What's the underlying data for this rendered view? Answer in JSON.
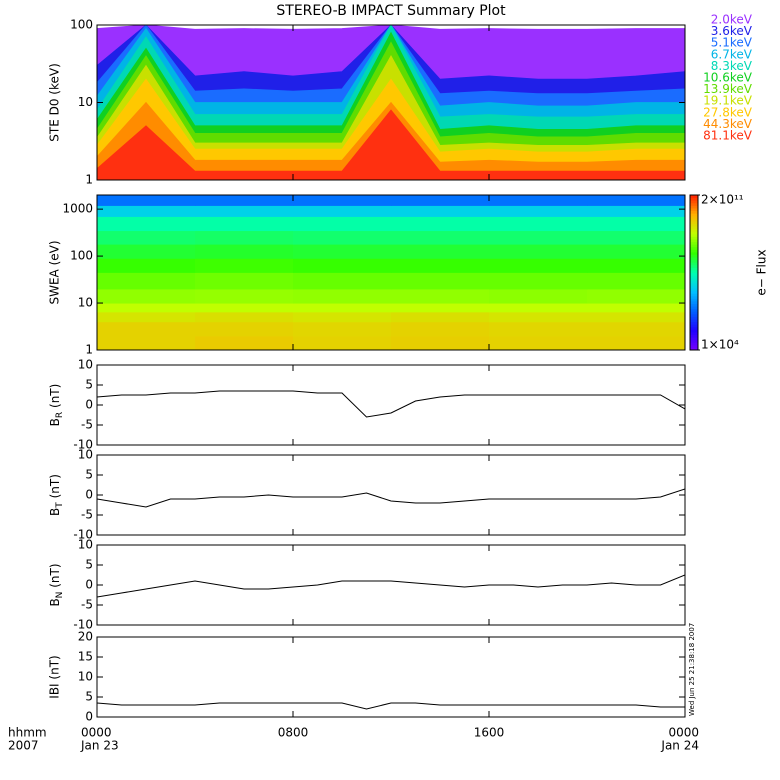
{
  "chart_data": [
    {
      "type": "area",
      "title": "STEREO-B IMPACT Summary Plot",
      "ylabel": "STE D0 (keV)",
      "ylog": true,
      "ylim": [
        1,
        100
      ],
      "yticks": [
        1,
        10,
        100
      ],
      "xlim": [
        0,
        24
      ],
      "x": [
        0,
        2,
        4,
        6,
        8,
        10,
        12,
        14,
        16,
        18,
        20,
        22,
        24
      ],
      "series": [
        {
          "name": "2.0keV",
          "color": "#9a30ff",
          "values": [
            90,
            100,
            88,
            90,
            88,
            90,
            100,
            88,
            90,
            88,
            88,
            90,
            90
          ]
        },
        {
          "name": "3.6keV",
          "color": "#2020e8",
          "values": [
            30,
            100,
            22,
            25,
            22,
            25,
            100,
            20,
            22,
            20,
            20,
            22,
            25
          ]
        },
        {
          "name": "5.1keV",
          "color": "#1a6cff",
          "values": [
            18,
            100,
            14,
            15,
            14,
            15,
            100,
            13,
            14,
            13,
            13,
            14,
            15
          ]
        },
        {
          "name": "6.7keV",
          "color": "#00b4e6",
          "values": [
            12,
            90,
            10,
            10,
            10,
            10,
            100,
            9,
            10,
            9,
            9,
            10,
            10
          ]
        },
        {
          "name": "8.3keV",
          "color": "#00d8b4",
          "values": [
            8,
            70,
            7,
            7,
            7,
            7,
            100,
            6.5,
            7,
            6.5,
            6.5,
            7,
            7
          ]
        },
        {
          "name": "10.6keV",
          "color": "#10d020",
          "values": [
            6,
            50,
            5,
            5,
            5,
            5,
            80,
            4.5,
            5,
            4.5,
            4.5,
            5,
            5
          ]
        },
        {
          "name": "13.9keV",
          "color": "#60dc00",
          "values": [
            4.5,
            40,
            4,
            4,
            4,
            4,
            60,
            3.6,
            4,
            3.6,
            3.6,
            4,
            4
          ]
        },
        {
          "name": "19.1keV",
          "color": "#c8e000",
          "values": [
            3.5,
            30,
            3,
            3,
            3,
            3,
            40,
            2.8,
            3,
            2.8,
            2.8,
            3,
            3
          ]
        },
        {
          "name": "27.8keV",
          "color": "#ffc800",
          "values": [
            2.8,
            20,
            2.5,
            2.5,
            2.5,
            2.5,
            20,
            2.3,
            2.5,
            2.3,
            2.3,
            2.5,
            2.5
          ]
        },
        {
          "name": "44.3keV",
          "color": "#ff8c00",
          "values": [
            2,
            10,
            1.8,
            1.8,
            1.8,
            1.8,
            10,
            1.7,
            1.8,
            1.7,
            1.7,
            1.8,
            1.8
          ]
        },
        {
          "name": "81.1keV",
          "color": "#ff3010",
          "values": [
            1.4,
            5,
            1.3,
            1.3,
            1.3,
            1.3,
            8,
            1.3,
            1.3,
            1.3,
            1.3,
            1.3,
            1.3
          ]
        }
      ]
    },
    {
      "type": "heatmap",
      "ylabel": "SWEA (eV)",
      "ylog": true,
      "ylim": [
        1,
        2000
      ],
      "yticks": [
        1,
        10,
        100,
        1000
      ],
      "xlim": [
        0,
        24
      ],
      "time_bins": [
        0,
        4,
        8,
        12,
        16,
        20,
        24
      ],
      "energy_bins": [
        1,
        2,
        4,
        6.5,
        10,
        20,
        45,
        90,
        180,
        350,
        700,
        1200,
        2000
      ],
      "flux": [
        [
          10000000000.0,
          12000000000.0,
          10000000000.0,
          11000000000.0,
          10000000000.0,
          10000000000.0
        ],
        [
          10000000000.0,
          10000000000.0,
          9000000000.0,
          10000000000.0,
          9000000000.0,
          9000000000.0
        ],
        [
          6000000000.0,
          7000000000.0,
          6000000000.0,
          7000000000.0,
          6000000000.0,
          6000000000.0
        ],
        [
          3000000000.0,
          3000000000.0,
          3000000000.0,
          3000000000.0,
          3000000000.0,
          3000000000.0
        ],
        [
          1500000000.0,
          1600000000.0,
          1500000000.0,
          1500000000.0,
          1400000000.0,
          1500000000.0
        ],
        [
          800000000.0,
          900000000.0,
          800000000.0,
          800000000.0,
          800000000.0,
          800000000.0
        ],
        [
          400000000.0,
          450000000.0,
          400000000.0,
          400000000.0,
          400000000.0,
          400000000.0
        ],
        [
          200000000.0,
          220000000.0,
          200000000.0,
          200000000.0,
          200000000.0,
          200000000.0
        ],
        [
          100000000.0,
          110000000.0,
          100000000.0,
          100000000.0,
          100000000.0,
          100000000.0
        ],
        [
          50000000.0,
          50000000.0,
          50000000.0,
          50000000.0,
          50000000.0,
          50000000.0
        ],
        [
          10000000.0,
          10000000.0,
          10000000.0,
          10000000.0,
          10000000.0,
          10000000.0
        ],
        [
          1000000.0,
          1000000.0,
          1000000.0,
          1000000.0,
          1000000.0,
          1000000.0
        ]
      ],
      "colorbar": {
        "label": "e− Flux",
        "lim": [
          10000,
          200000000000
        ],
        "ticks": [
          {
            "value": 10000,
            "label": "1×10⁴"
          },
          {
            "value": 200000000000,
            "label": "2×10¹¹"
          }
        ],
        "colormap": [
          "#7800ff",
          "#2000ff",
          "#0060ff",
          "#00c0ff",
          "#00ffb0",
          "#30ff00",
          "#c0ff00",
          "#ffb000",
          "#ff2000"
        ]
      }
    },
    {
      "type": "line",
      "ylabel": {
        "base": "B",
        "sub": "R",
        "unit": "(nT)"
      },
      "ylim": [
        -10,
        10
      ],
      "yticks": [
        -10,
        -5,
        0,
        5,
        10
      ],
      "xlim": [
        0,
        24
      ],
      "x": [
        0,
        1,
        2,
        3,
        4,
        5,
        6,
        7,
        8,
        9,
        10,
        11,
        12,
        13,
        14,
        15,
        16,
        17,
        18,
        19,
        20,
        21,
        22,
        23,
        24
      ],
      "values": [
        2,
        2.5,
        2.5,
        3,
        3,
        3.5,
        3.5,
        3.5,
        3.5,
        3,
        3,
        -3,
        -2,
        1,
        2,
        2.5,
        2.5,
        2.5,
        2.5,
        2.5,
        2.5,
        2.5,
        2.5,
        2.5,
        -1
      ]
    },
    {
      "type": "line",
      "ylabel": {
        "base": "B",
        "sub": "T",
        "unit": "(nT)"
      },
      "ylim": [
        -10,
        10
      ],
      "yticks": [
        -10,
        -5,
        0,
        5,
        10
      ],
      "xlim": [
        0,
        24
      ],
      "x": [
        0,
        1,
        2,
        3,
        4,
        5,
        6,
        7,
        8,
        9,
        10,
        11,
        12,
        13,
        14,
        15,
        16,
        17,
        18,
        19,
        20,
        21,
        22,
        23,
        24
      ],
      "values": [
        -1,
        -2,
        -3,
        -1,
        -1,
        -0.5,
        -0.5,
        0,
        -0.5,
        -0.5,
        -0.5,
        0.5,
        -1.5,
        -2,
        -2,
        -1.5,
        -1,
        -1,
        -1,
        -1,
        -1,
        -1,
        -1,
        -0.5,
        1.5
      ]
    },
    {
      "type": "line",
      "ylabel": {
        "base": "B",
        "sub": "N",
        "unit": "(nT)"
      },
      "ylim": [
        -10,
        10
      ],
      "yticks": [
        -10,
        -5,
        0,
        5,
        10
      ],
      "xlim": [
        0,
        24
      ],
      "x": [
        0,
        1,
        2,
        3,
        4,
        5,
        6,
        7,
        8,
        9,
        10,
        11,
        12,
        13,
        14,
        15,
        16,
        17,
        18,
        19,
        20,
        21,
        22,
        23,
        24
      ],
      "values": [
        -3,
        -2,
        -1,
        0,
        1,
        0,
        -1,
        -1,
        -0.5,
        0,
        1,
        1,
        1,
        0.5,
        0,
        -0.5,
        0,
        0,
        -0.5,
        0,
        0,
        0.5,
        0,
        0,
        2.5
      ]
    },
    {
      "type": "line",
      "ylabel": "IBI (nT)",
      "ylim": [
        0,
        20
      ],
      "yticks": [
        0,
        5,
        10,
        15,
        20
      ],
      "xlim": [
        0,
        24
      ],
      "x": [
        0,
        1,
        2,
        3,
        4,
        5,
        6,
        7,
        8,
        9,
        10,
        11,
        12,
        13,
        14,
        15,
        16,
        17,
        18,
        19,
        20,
        21,
        22,
        23,
        24
      ],
      "values": [
        3.5,
        3,
        3,
        3,
        3,
        3.5,
        3.5,
        3.5,
        3.5,
        3.5,
        3.5,
        2,
        3.5,
        3.5,
        3,
        3,
        3,
        3,
        3,
        3,
        3,
        3,
        3,
        2.5,
        2.5
      ],
      "xticks": [
        {
          "value": 0,
          "label": "0000"
        },
        {
          "value": 8,
          "label": "0800"
        },
        {
          "value": 16,
          "label": "1600"
        },
        {
          "value": 24,
          "label": "0000"
        }
      ],
      "date_labels": [
        {
          "value": 0,
          "label": "Jan 23"
        },
        {
          "value": 24,
          "label": "Jan 24"
        }
      ],
      "time_unit": "hhmm",
      "year": "2007",
      "timestamp": "Wed Jun 25 21:38:18 2007"
    }
  ]
}
